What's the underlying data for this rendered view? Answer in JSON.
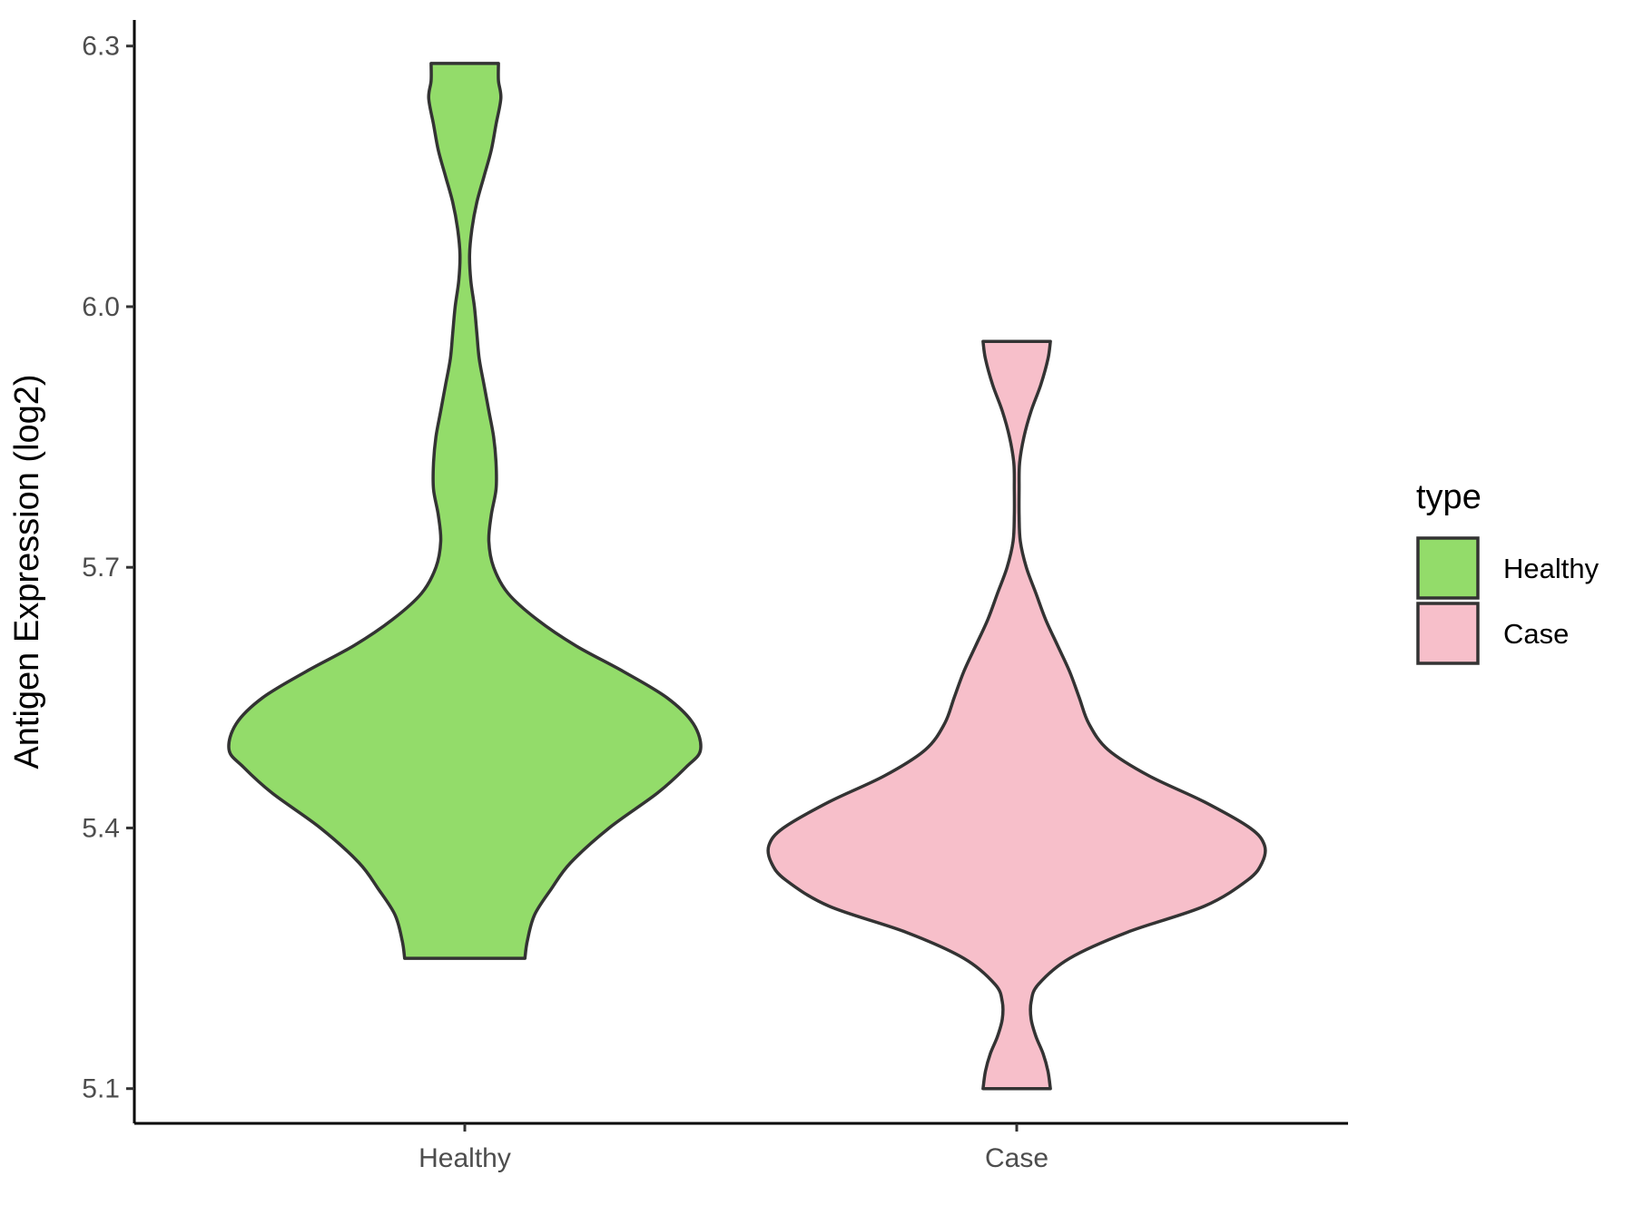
{
  "chart_data": {
    "type": "violin",
    "ylabel": "Antigen Expression (log2)",
    "xlabel": "",
    "ylim": [
      5.06,
      6.33
    ],
    "yticks": [
      "5.1",
      "5.4",
      "5.7",
      "6.0",
      "6.3"
    ],
    "categories": [
      "Healthy",
      "Case"
    ],
    "legend": {
      "title": "type",
      "position": "right",
      "entries": [
        {
          "label": "Healthy",
          "color": "#93dc6a"
        },
        {
          "label": "Case",
          "color": "#f7bfca"
        }
      ]
    },
    "grid": false,
    "series": [
      {
        "name": "Healthy",
        "color": "#93dc6a",
        "min": 5.25,
        "max": 6.28,
        "density": [
          [
            5.25,
            0.25
          ],
          [
            5.27,
            0.26
          ],
          [
            5.3,
            0.29
          ],
          [
            5.33,
            0.36
          ],
          [
            5.36,
            0.44
          ],
          [
            5.4,
            0.6
          ],
          [
            5.44,
            0.8
          ],
          [
            5.47,
            0.92
          ],
          [
            5.49,
            0.98
          ],
          [
            5.52,
            0.95
          ],
          [
            5.55,
            0.84
          ],
          [
            5.58,
            0.66
          ],
          [
            5.61,
            0.46
          ],
          [
            5.64,
            0.3
          ],
          [
            5.67,
            0.18
          ],
          [
            5.7,
            0.12
          ],
          [
            5.73,
            0.1
          ],
          [
            5.76,
            0.11
          ],
          [
            5.79,
            0.13
          ],
          [
            5.82,
            0.13
          ],
          [
            5.85,
            0.12
          ],
          [
            5.88,
            0.1
          ],
          [
            5.91,
            0.08
          ],
          [
            5.94,
            0.06
          ],
          [
            5.97,
            0.05
          ],
          [
            6.0,
            0.04
          ],
          [
            6.03,
            0.025
          ],
          [
            6.06,
            0.02
          ],
          [
            6.09,
            0.03
          ],
          [
            6.12,
            0.05
          ],
          [
            6.15,
            0.08
          ],
          [
            6.18,
            0.11
          ],
          [
            6.21,
            0.13
          ],
          [
            6.24,
            0.15
          ],
          [
            6.26,
            0.14
          ],
          [
            6.28,
            0.14
          ]
        ]
      },
      {
        "name": "Case",
        "color": "#f7bfca",
        "min": 5.1,
        "max": 5.96,
        "density": [
          [
            5.1,
            0.14
          ],
          [
            5.12,
            0.13
          ],
          [
            5.14,
            0.11
          ],
          [
            5.16,
            0.08
          ],
          [
            5.18,
            0.06
          ],
          [
            5.2,
            0.06
          ],
          [
            5.22,
            0.09
          ],
          [
            5.25,
            0.22
          ],
          [
            5.28,
            0.46
          ],
          [
            5.31,
            0.78
          ],
          [
            5.34,
            0.96
          ],
          [
            5.36,
            1.02
          ],
          [
            5.38,
            1.03
          ],
          [
            5.4,
            0.97
          ],
          [
            5.43,
            0.78
          ],
          [
            5.46,
            0.55
          ],
          [
            5.49,
            0.38
          ],
          [
            5.52,
            0.3
          ],
          [
            5.55,
            0.26
          ],
          [
            5.58,
            0.22
          ],
          [
            5.61,
            0.17
          ],
          [
            5.64,
            0.12
          ],
          [
            5.67,
            0.08
          ],
          [
            5.7,
            0.04
          ],
          [
            5.73,
            0.015
          ],
          [
            5.76,
            0.01
          ],
          [
            5.79,
            0.01
          ],
          [
            5.82,
            0.012
          ],
          [
            5.85,
            0.03
          ],
          [
            5.88,
            0.06
          ],
          [
            5.91,
            0.1
          ],
          [
            5.94,
            0.13
          ],
          [
            5.96,
            0.14
          ]
        ]
      }
    ]
  }
}
